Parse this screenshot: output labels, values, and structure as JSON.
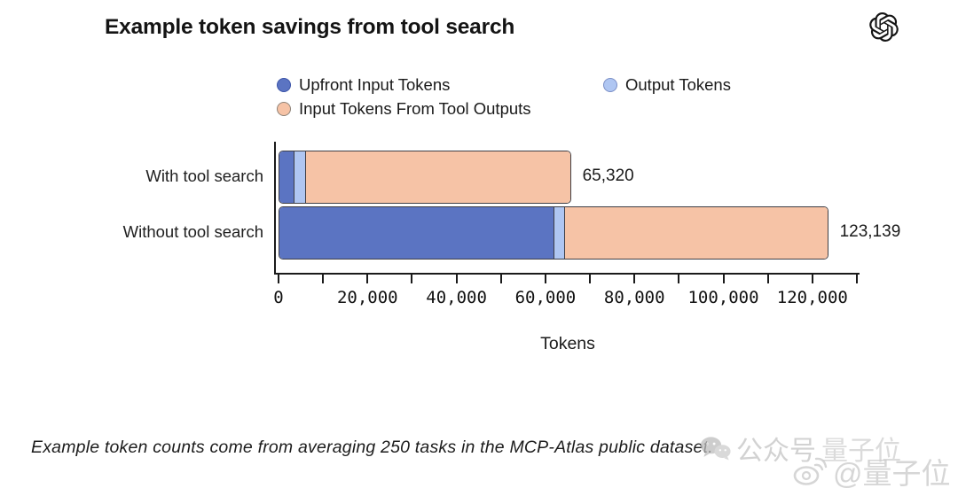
{
  "header": {
    "title": "Example token savings from tool search",
    "logo_icon": "openai-logo"
  },
  "chart_data": {
    "type": "bar",
    "orientation": "horizontal",
    "stacked": true,
    "title": "Example token savings from tool search",
    "xlabel": "Tokens",
    "categories": [
      "With tool search",
      "Without tool search"
    ],
    "series": [
      {
        "name": "Upfront Input Tokens",
        "color": "#5B74C2",
        "swatch_border": "#3A53A8",
        "values": [
          3200,
          61600
        ]
      },
      {
        "name": "Output Tokens",
        "color": "#AFC6F2",
        "swatch_border": "#7B8FC6",
        "values": [
          2600,
          2400
        ]
      },
      {
        "name": "Input Tokens From Tool Outputs",
        "color": "#F6C3A6",
        "swatch_border": "#8F8378",
        "values": [
          59520,
          59139
        ]
      }
    ],
    "totals": [
      65320,
      123139
    ],
    "total_labels": [
      "65,320",
      "123,139"
    ],
    "xlim": [
      0,
      130000
    ],
    "xtick_step": 10000,
    "xtick_label_step": 20000,
    "xtick_labels": [
      "0",
      "20,000",
      "40,000",
      "60,000",
      "80,000",
      "100,000",
      "120,000"
    ],
    "legend_position": "top",
    "grid": false
  },
  "footnote": {
    "text": "Example token counts come from averaging 250 tasks in the MCP-Atlas public dataset."
  },
  "watermark": {
    "wechat_label": "公众号",
    "brand1": "量子位",
    "weibo_label": "@量子位"
  }
}
